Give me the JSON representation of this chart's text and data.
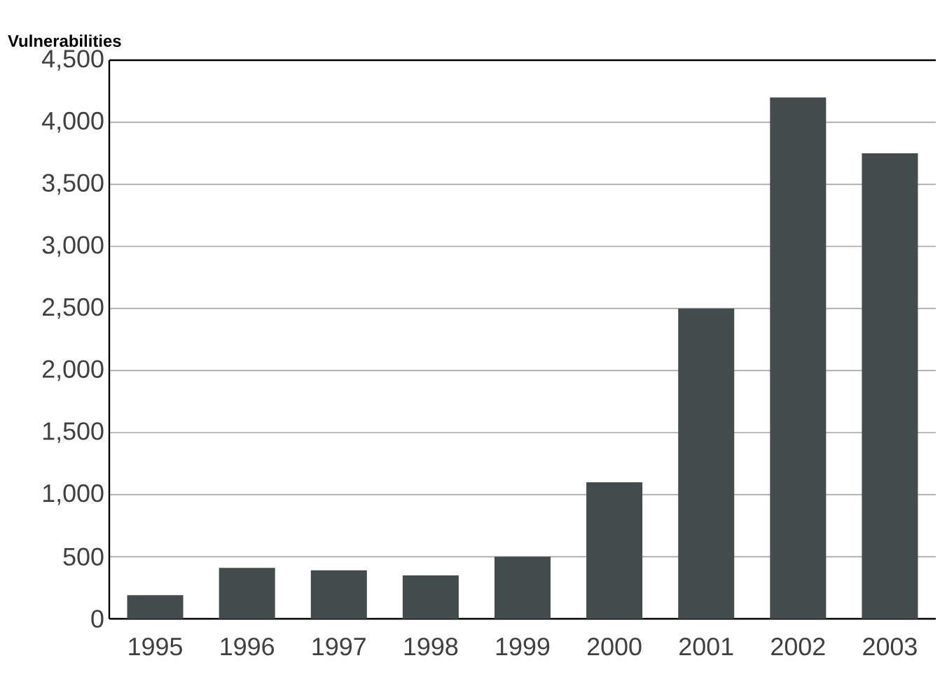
{
  "chart_data": {
    "type": "bar",
    "ylabel": "Vulnerabilities",
    "categories": [
      "1995",
      "1996",
      "1997",
      "1998",
      "1999",
      "2000",
      "2001",
      "2002",
      "2003"
    ],
    "values": [
      190,
      410,
      390,
      350,
      500,
      1100,
      2500,
      4200,
      3750
    ],
    "color": "#434b4c",
    "ylim": [
      0,
      4500
    ],
    "yticks": [
      {
        "value": 0,
        "label": "0"
      },
      {
        "value": 500,
        "label": "500"
      },
      {
        "value": 1000,
        "label": "1,000"
      },
      {
        "value": 1500,
        "label": "1,500"
      },
      {
        "value": 2000,
        "label": "2,000"
      },
      {
        "value": 2500,
        "label": "2,500"
      },
      {
        "value": 3000,
        "label": "3,000"
      },
      {
        "value": 3500,
        "label": "3,500"
      },
      {
        "value": 4000,
        "label": "4,000"
      },
      {
        "value": 4500,
        "label": "4,500"
      }
    ],
    "grid": "y"
  }
}
